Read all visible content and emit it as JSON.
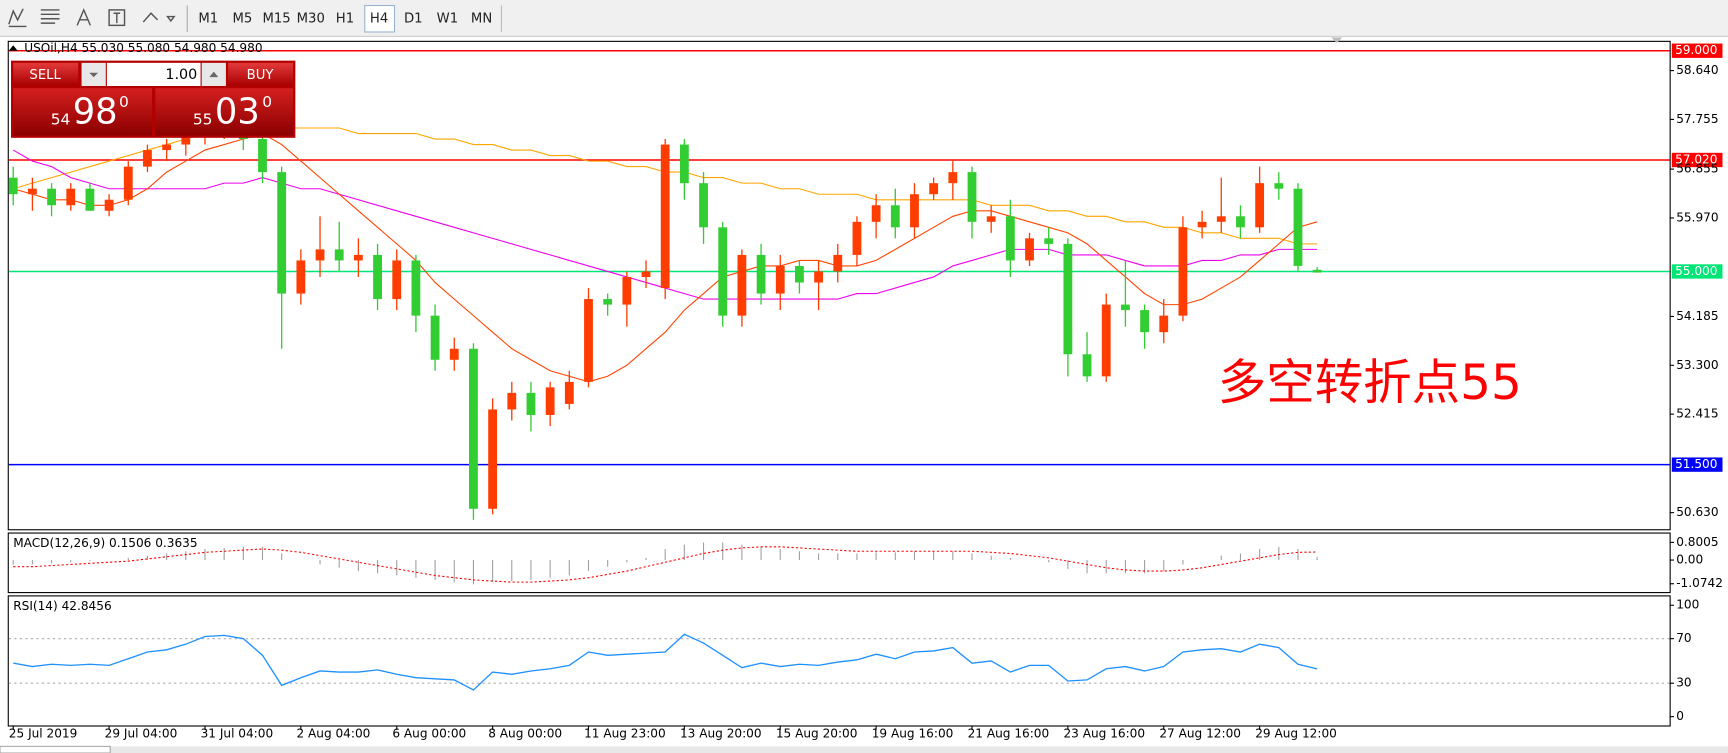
{
  "toolbar": {
    "timeframes": [
      "M1",
      "M5",
      "M15",
      "M30",
      "H1",
      "H4",
      "D1",
      "W1",
      "MN"
    ],
    "active": "H4"
  },
  "trade_panel": {
    "sell": "SELL",
    "lot": "1.00",
    "buy": "BUY",
    "bid": [
      "54",
      "98",
      "0"
    ],
    "ask": [
      "55",
      "03",
      "0"
    ]
  },
  "chart_data": [
    {
      "type": "candlestick",
      "title": "USOil,H4  55.030 55.080 54.980 54.980",
      "annotation": "多空转折点55",
      "categories": [
        "25 Jul 2019",
        null,
        null,
        null,
        null,
        "29 Jul 04:00",
        null,
        null,
        null,
        null,
        "31 Jul 04:00",
        null,
        null,
        null,
        null,
        "2 Aug 04:00",
        null,
        null,
        null,
        null,
        "6 Aug 00:00",
        null,
        null,
        null,
        null,
        "8 Aug 00:00",
        null,
        null,
        null,
        null,
        "11 Aug 23:00",
        null,
        null,
        null,
        null,
        "13 Aug 20:00",
        null,
        null,
        null,
        null,
        "15 Aug 20:00",
        null,
        null,
        null,
        null,
        "19 Aug 16:00",
        null,
        null,
        null,
        null,
        "21 Aug 16:00",
        null,
        null,
        null,
        null,
        "23 Aug 16:00",
        null,
        null,
        null,
        null,
        "27 Aug 12:00",
        null,
        null,
        null,
        null,
        "29 Aug 12:00",
        null,
        null,
        null
      ],
      "open": [
        56.7,
        56.4,
        56.5,
        56.2,
        56.5,
        56.1,
        56.3,
        56.9,
        57.2,
        57.3,
        57.5,
        57.6,
        57.7,
        57.4,
        56.8,
        54.6,
        55.2,
        55.4,
        55.2,
        55.3,
        54.5,
        55.2,
        54.2,
        53.4,
        53.6,
        50.7,
        52.5,
        52.8,
        52.4,
        52.6,
        53.0,
        54.5,
        54.4,
        54.9,
        54.7,
        57.3,
        56.6,
        55.8,
        54.2,
        55.3,
        54.6,
        55.1,
        54.8,
        55.0,
        55.3,
        55.9,
        56.2,
        55.8,
        56.4,
        56.6,
        56.8,
        55.9,
        56.0,
        55.2,
        55.6,
        55.5,
        53.5,
        53.1,
        54.4,
        54.3,
        53.9,
        54.2,
        55.8,
        55.9,
        56.0,
        55.8,
        56.6,
        56.5,
        55.03
      ],
      "high": [
        56.9,
        56.7,
        56.6,
        56.6,
        56.6,
        56.4,
        57.0,
        57.3,
        57.4,
        57.6,
        57.8,
        57.9,
        57.8,
        57.6,
        56.9,
        55.4,
        56.0,
        55.9,
        55.6,
        55.5,
        55.4,
        55.3,
        54.4,
        53.8,
        53.7,
        52.7,
        53.0,
        53.0,
        53.0,
        53.2,
        54.7,
        54.6,
        55.0,
        55.2,
        57.4,
        57.4,
        56.8,
        55.9,
        55.4,
        55.5,
        55.3,
        55.2,
        55.2,
        55.5,
        56.0,
        56.4,
        56.5,
        56.6,
        56.7,
        57.0,
        56.9,
        56.2,
        56.3,
        55.7,
        55.8,
        55.6,
        53.9,
        54.6,
        55.2,
        54.4,
        54.5,
        56.0,
        56.1,
        56.7,
        56.2,
        56.9,
        56.8,
        56.6,
        55.08
      ],
      "low": [
        56.2,
        56.1,
        56.0,
        56.1,
        56.1,
        56.0,
        56.2,
        56.8,
        57.0,
        57.1,
        57.3,
        57.4,
        57.2,
        56.6,
        53.6,
        54.4,
        54.9,
        55.0,
        54.9,
        54.3,
        54.3,
        53.9,
        53.2,
        53.2,
        50.5,
        50.6,
        52.3,
        52.1,
        52.2,
        52.5,
        52.9,
        54.2,
        54.0,
        54.7,
        54.5,
        56.3,
        55.5,
        54.0,
        54.0,
        54.4,
        54.3,
        54.6,
        54.3,
        54.8,
        55.1,
        55.6,
        55.6,
        55.6,
        56.3,
        56.3,
        55.6,
        55.7,
        54.9,
        55.1,
        55.3,
        53.1,
        53.0,
        53.0,
        54.0,
        53.6,
        53.7,
        54.1,
        55.6,
        55.7,
        55.6,
        55.7,
        56.3,
        55.0,
        54.98
      ],
      "close": [
        56.4,
        56.5,
        56.2,
        56.5,
        56.1,
        56.3,
        56.9,
        57.2,
        57.3,
        57.5,
        57.6,
        57.7,
        57.4,
        56.8,
        54.6,
        55.2,
        55.4,
        55.2,
        55.3,
        54.5,
        55.2,
        54.2,
        53.4,
        53.6,
        50.7,
        52.5,
        52.8,
        52.4,
        52.9,
        53.0,
        54.5,
        54.4,
        54.9,
        55.0,
        57.3,
        56.6,
        55.8,
        54.2,
        55.3,
        54.6,
        55.1,
        54.8,
        55.0,
        55.3,
        55.9,
        56.2,
        55.8,
        56.4,
        56.6,
        56.8,
        55.9,
        56.0,
        55.2,
        55.6,
        55.5,
        53.5,
        53.1,
        54.4,
        54.3,
        53.9,
        54.2,
        55.8,
        55.9,
        56.0,
        55.8,
        56.6,
        56.5,
        55.1,
        54.98
      ],
      "up_color": "#ff3d00",
      "down_color": "#32cd32",
      "overlays": [
        {
          "color": "#ffa500",
          "values": [
            56.5,
            56.6,
            56.7,
            56.8,
            56.9,
            57.0,
            57.1,
            57.2,
            57.3,
            57.4,
            57.5,
            57.5,
            57.6,
            57.6,
            57.6,
            57.6,
            57.6,
            57.6,
            57.5,
            57.5,
            57.5,
            57.5,
            57.4,
            57.4,
            57.3,
            57.3,
            57.2,
            57.2,
            57.1,
            57.1,
            57.0,
            57.0,
            56.9,
            56.9,
            56.8,
            56.8,
            56.7,
            56.7,
            56.6,
            56.6,
            56.5,
            56.5,
            56.4,
            56.4,
            56.4,
            56.3,
            56.3,
            56.3,
            56.3,
            56.3,
            56.3,
            56.2,
            56.2,
            56.2,
            56.1,
            56.1,
            56.0,
            56.0,
            55.9,
            55.9,
            55.8,
            55.8,
            55.7,
            55.7,
            55.6,
            55.6,
            55.6,
            55.5,
            55.5
          ]
        },
        {
          "color": "#ee00ee",
          "values": [
            57.2,
            57.0,
            56.9,
            56.7,
            56.6,
            56.5,
            56.5,
            56.5,
            56.5,
            56.5,
            56.5,
            56.6,
            56.6,
            56.7,
            56.6,
            56.5,
            56.5,
            56.4,
            56.3,
            56.2,
            56.1,
            56.0,
            55.9,
            55.8,
            55.7,
            55.6,
            55.5,
            55.4,
            55.3,
            55.2,
            55.1,
            55.0,
            54.9,
            54.8,
            54.7,
            54.6,
            54.5,
            54.5,
            54.5,
            54.5,
            54.5,
            54.5,
            54.5,
            54.5,
            54.6,
            54.6,
            54.7,
            54.8,
            54.9,
            55.1,
            55.2,
            55.3,
            55.4,
            55.4,
            55.4,
            55.3,
            55.3,
            55.3,
            55.2,
            55.1,
            55.1,
            55.1,
            55.2,
            55.2,
            55.3,
            55.3,
            55.4,
            55.4,
            55.4
          ]
        },
        {
          "color": "#ff4500",
          "values": [
            56.5,
            56.4,
            56.3,
            56.3,
            56.2,
            56.2,
            56.3,
            56.5,
            56.8,
            57.0,
            57.2,
            57.3,
            57.4,
            57.5,
            57.3,
            57.0,
            56.7,
            56.4,
            56.1,
            55.8,
            55.5,
            55.2,
            54.8,
            54.5,
            54.2,
            53.9,
            53.6,
            53.4,
            53.2,
            53.1,
            53.0,
            53.1,
            53.3,
            53.6,
            53.9,
            54.3,
            54.6,
            54.9,
            55.0,
            55.1,
            55.1,
            55.2,
            55.2,
            55.1,
            55.1,
            55.2,
            55.4,
            55.6,
            55.8,
            56.0,
            56.1,
            56.1,
            56.0,
            55.9,
            55.8,
            55.7,
            55.5,
            55.2,
            54.9,
            54.6,
            54.4,
            54.4,
            54.5,
            54.7,
            54.9,
            55.2,
            55.5,
            55.8,
            55.9
          ]
        }
      ],
      "hlines": [
        {
          "value": 59,
          "label": "59.000",
          "color": "#ff0000"
        },
        {
          "value": 57.02,
          "label": "57.020",
          "color": "#ff0000"
        },
        {
          "value": 55,
          "label": "55.000",
          "color": "#00e676"
        },
        {
          "value": 51.5,
          "label": "51.500",
          "color": "#0000ff"
        }
      ],
      "ylim": [
        50.33,
        59.16
      ],
      "yticks": [
        {
          "value": 58.64,
          "label": "58.640"
        },
        57.755,
        56.855,
        {
          "value": 55.97,
          "label": "55.970"
        },
        54.185,
        {
          "value": 53.3,
          "label": "53.300"
        },
        52.415,
        {
          "value": 50.63,
          "label": "50.630"
        }
      ]
    },
    {
      "type": "macd",
      "title": "MACD(12,26,9) 0.1506 0.3635",
      "histogram": [
        -0.2,
        -0.2,
        -0.15,
        -0.1,
        -0.05,
        0.0,
        0.1,
        0.2,
        0.3,
        0.4,
        0.5,
        0.55,
        0.6,
        0.6,
        0.3,
        0.0,
        -0.2,
        -0.35,
        -0.5,
        -0.6,
        -0.7,
        -0.8,
        -0.9,
        -1.0,
        -1.1,
        -1.0,
        -0.95,
        -0.9,
        -0.8,
        -0.7,
        -0.5,
        -0.3,
        -0.1,
        0.1,
        0.5,
        0.7,
        0.8,
        0.8,
        0.7,
        0.6,
        0.5,
        0.4,
        0.3,
        0.3,
        0.3,
        0.35,
        0.35,
        0.4,
        0.4,
        0.4,
        0.3,
        0.2,
        0.1,
        0.0,
        -0.1,
        -0.4,
        -0.6,
        -0.6,
        -0.6,
        -0.6,
        -0.5,
        -0.2,
        0.0,
        0.2,
        0.3,
        0.5,
        0.6,
        0.5,
        0.1506
      ],
      "signal": [
        -0.3,
        -0.3,
        -0.25,
        -0.2,
        -0.15,
        -0.1,
        -0.05,
        0.05,
        0.15,
        0.25,
        0.35,
        0.4,
        0.45,
        0.5,
        0.45,
        0.35,
        0.2,
        0.05,
        -0.1,
        -0.25,
        -0.4,
        -0.55,
        -0.7,
        -0.8,
        -0.9,
        -0.95,
        -1.0,
        -1.0,
        -0.95,
        -0.9,
        -0.8,
        -0.65,
        -0.5,
        -0.3,
        -0.1,
        0.1,
        0.3,
        0.45,
        0.55,
        0.6,
        0.6,
        0.55,
        0.5,
        0.45,
        0.4,
        0.4,
        0.4,
        0.4,
        0.4,
        0.4,
        0.4,
        0.35,
        0.3,
        0.2,
        0.1,
        -0.05,
        -0.2,
        -0.35,
        -0.45,
        -0.5,
        -0.5,
        -0.45,
        -0.35,
        -0.2,
        -0.05,
        0.1,
        0.25,
        0.35,
        0.3635
      ],
      "histogram_color": "#a0a0a0",
      "signal_color": "#ff0000",
      "ylim": [
        -1.5,
        1.2
      ],
      "yticks": [
        0.8005,
        {
          "value": 0,
          "label": "0.00"
        },
        -1.0742
      ]
    },
    {
      "type": "line",
      "title": "RSI(14) 42.8456",
      "color": "#1e90ff",
      "values": [
        48,
        45,
        47,
        46,
        47,
        46,
        52,
        58,
        60,
        65,
        72,
        73,
        70,
        55,
        28,
        35,
        41,
        40,
        40,
        42,
        38,
        35,
        34,
        33,
        24,
        40,
        38,
        41,
        43,
        46,
        58,
        55,
        56,
        57,
        58,
        74,
        66,
        55,
        44,
        48,
        45,
        47,
        46,
        49,
        51,
        56,
        52,
        58,
        59,
        62,
        48,
        50,
        40,
        46,
        46,
        32,
        33,
        43,
        45,
        41,
        45,
        58,
        60,
        61,
        58,
        65,
        62,
        47,
        42.8456
      ],
      "levels": [
        70,
        30
      ],
      "ylim": [
        -7.9,
        107.9
      ],
      "yticks": [
        100,
        70,
        30,
        0
      ]
    }
  ]
}
